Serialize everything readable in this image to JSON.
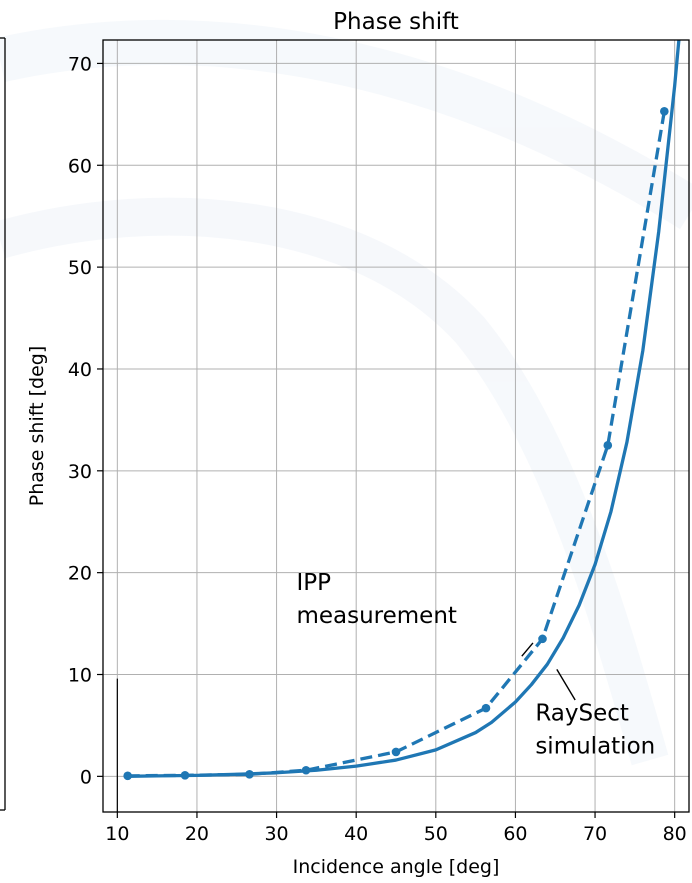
{
  "chart_data": {
    "type": "line",
    "title": "Phase shift",
    "xlabel": "Incidence angle [deg]",
    "ylabel": "Phase shift [deg]",
    "xlim": [
      8.2,
      81.8
    ],
    "ylim": [
      -3.5,
      72.3
    ],
    "xticks": [
      10,
      20,
      30,
      40,
      50,
      60,
      70,
      80
    ],
    "yticks": [
      0,
      10,
      20,
      30,
      40,
      50,
      60,
      70
    ],
    "grid": true,
    "series": [
      {
        "key": "simulation",
        "color": "#1f77b4",
        "style": "solid",
        "x": [
          11,
          15,
          20,
          25,
          30,
          35,
          40,
          45,
          50,
          55,
          57,
          60,
          62,
          64,
          66,
          68,
          70,
          72,
          74,
          76,
          78,
          80,
          81.2
        ],
        "y": [
          0.0,
          0.05,
          0.1,
          0.2,
          0.35,
          0.6,
          1.0,
          1.6,
          2.6,
          4.3,
          5.3,
          7.3,
          9.0,
          11.0,
          13.6,
          16.8,
          20.8,
          26.0,
          32.8,
          41.8,
          53.5,
          67.8,
          78.0
        ]
      },
      {
        "key": "measurement",
        "color": "#1f77b4",
        "style": "dashed",
        "markers": true,
        "x": [
          11.3,
          18.5,
          26.6,
          33.7,
          45.0,
          56.3,
          63.4,
          71.6,
          78.7
        ],
        "y": [
          0.05,
          0.1,
          0.2,
          0.6,
          2.4,
          6.7,
          13.5,
          32.5,
          65.3
        ]
      }
    ],
    "annotations": [
      {
        "lines": [
          "IPP",
          "measurement"
        ],
        "text_at": [
          32.5,
          18.3
        ],
        "arrow_from": [
          62.2,
          13.1
        ],
        "arrow_to": [
          60.8,
          11.8
        ],
        "anchor": "start"
      },
      {
        "lines": [
          "RaySect",
          "simulation"
        ],
        "text_at": [
          62.5,
          5.5
        ],
        "arrow_from": [
          67.5,
          7.5
        ],
        "arrow_to": [
          65.2,
          10.5
        ],
        "anchor": "start"
      }
    ]
  }
}
